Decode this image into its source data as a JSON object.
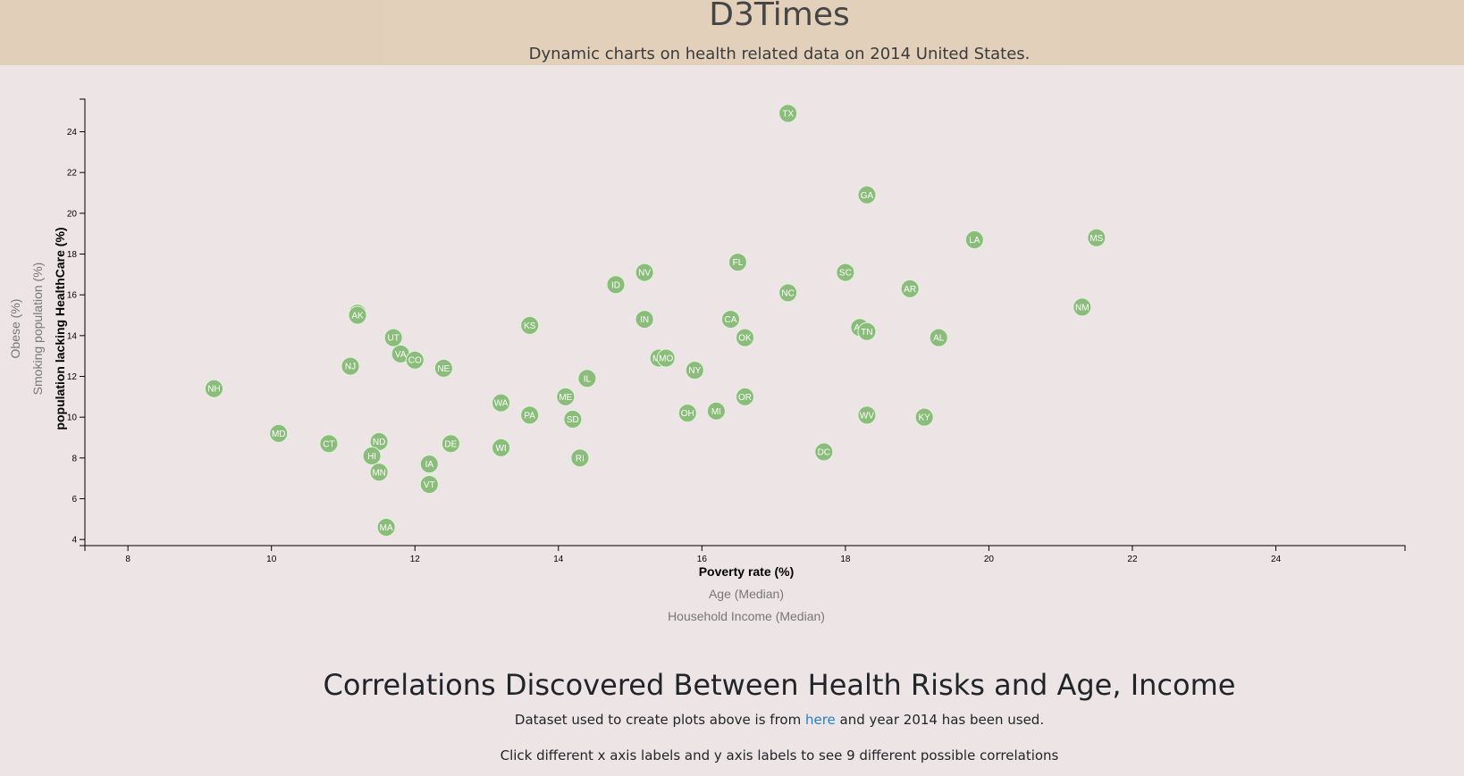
{
  "header": {
    "title": "D3Times",
    "subtitle": "Dynamic charts on health related data on 2014 United States."
  },
  "colors": {
    "circle": "#89bd79",
    "header_bg": "#e2cfb9",
    "page_bg": "#ede5e5",
    "link": "#1f7fd2"
  },
  "chart_data": {
    "type": "scatter",
    "xlabel": "Poverty rate (%)",
    "ylabel": "population lacking HealthCare (%)",
    "x_axis_options": [
      "Poverty rate (%)",
      "Age (Median)",
      "Household Income (Median)"
    ],
    "y_axis_options": [
      "population lacking HealthCare (%)",
      "Smoking population (%)",
      "Obese (%)"
    ],
    "active_x": 0,
    "active_y": 0,
    "xlim": [
      7.4,
      25.8
    ],
    "ylim": [
      3.7,
      25.6
    ],
    "x_ticks": [
      8,
      10,
      12,
      14,
      16,
      18,
      20,
      22,
      24
    ],
    "y_ticks": [
      4,
      6,
      8,
      10,
      12,
      14,
      16,
      18,
      20,
      22,
      24
    ],
    "points": [
      {
        "state": "TX",
        "x": 17.2,
        "y": 24.9
      },
      {
        "state": "GA",
        "x": 18.3,
        "y": 20.9
      },
      {
        "state": "LA",
        "x": 19.8,
        "y": 18.7
      },
      {
        "state": "MS",
        "x": 21.5,
        "y": 18.8
      },
      {
        "state": "FL",
        "x": 16.5,
        "y": 17.6
      },
      {
        "state": "NV",
        "x": 15.2,
        "y": 17.1
      },
      {
        "state": "SC",
        "x": 18.0,
        "y": 17.1
      },
      {
        "state": "ID",
        "x": 14.8,
        "y": 16.5
      },
      {
        "state": "AR",
        "x": 18.9,
        "y": 16.3
      },
      {
        "state": "NC",
        "x": 17.2,
        "y": 16.1
      },
      {
        "state": "NM",
        "x": 21.3,
        "y": 15.4
      },
      {
        "state": "WY",
        "x": 11.2,
        "y": 15.1
      },
      {
        "state": "AK",
        "x": 11.2,
        "y": 15.0
      },
      {
        "state": "IN",
        "x": 15.2,
        "y": 14.8
      },
      {
        "state": "CA",
        "x": 16.4,
        "y": 14.8
      },
      {
        "state": "KS",
        "x": 13.6,
        "y": 14.5
      },
      {
        "state": "AZ",
        "x": 18.2,
        "y": 14.4
      },
      {
        "state": "TN",
        "x": 18.3,
        "y": 14.2
      },
      {
        "state": "UT",
        "x": 11.7,
        "y": 13.9
      },
      {
        "state": "OK",
        "x": 16.6,
        "y": 13.9
      },
      {
        "state": "AL",
        "x": 19.3,
        "y": 13.9
      },
      {
        "state": "VA",
        "x": 11.8,
        "y": 13.1
      },
      {
        "state": "MT",
        "x": 15.4,
        "y": 12.9
      },
      {
        "state": "MO",
        "x": 15.5,
        "y": 12.9
      },
      {
        "state": "CO",
        "x": 12.0,
        "y": 12.8
      },
      {
        "state": "NJ",
        "x": 11.1,
        "y": 12.5
      },
      {
        "state": "NE",
        "x": 12.4,
        "y": 12.4
      },
      {
        "state": "NY",
        "x": 15.9,
        "y": 12.3
      },
      {
        "state": "IL",
        "x": 14.4,
        "y": 11.9
      },
      {
        "state": "NH",
        "x": 9.2,
        "y": 11.4
      },
      {
        "state": "ME",
        "x": 14.1,
        "y": 11.0
      },
      {
        "state": "OR",
        "x": 16.6,
        "y": 11.0
      },
      {
        "state": "WA",
        "x": 13.2,
        "y": 10.7
      },
      {
        "state": "MI",
        "x": 16.2,
        "y": 10.3
      },
      {
        "state": "OH",
        "x": 15.8,
        "y": 10.2
      },
      {
        "state": "PA",
        "x": 13.6,
        "y": 10.1
      },
      {
        "state": "WV",
        "x": 18.3,
        "y": 10.1
      },
      {
        "state": "KY",
        "x": 19.1,
        "y": 10.0
      },
      {
        "state": "SD",
        "x": 14.2,
        "y": 9.9
      },
      {
        "state": "MD",
        "x": 10.1,
        "y": 9.2
      },
      {
        "state": "CT",
        "x": 10.8,
        "y": 8.7
      },
      {
        "state": "ND",
        "x": 11.5,
        "y": 8.8
      },
      {
        "state": "DE",
        "x": 12.5,
        "y": 8.7
      },
      {
        "state": "WI",
        "x": 13.2,
        "y": 8.5
      },
      {
        "state": "DC",
        "x": 17.7,
        "y": 8.3
      },
      {
        "state": "HI",
        "x": 11.4,
        "y": 8.1
      },
      {
        "state": "RI",
        "x": 14.3,
        "y": 8.0
      },
      {
        "state": "IA",
        "x": 12.2,
        "y": 7.7
      },
      {
        "state": "MN",
        "x": 11.5,
        "y": 7.3
      },
      {
        "state": "VT",
        "x": 12.2,
        "y": 6.7
      },
      {
        "state": "MA",
        "x": 11.6,
        "y": 4.6
      }
    ]
  },
  "content": {
    "section_title": "Correlations Discovered Between Health Risks and Age, Income",
    "dataset_prefix": "Dataset used to create plots above is from ",
    "dataset_link": "here",
    "dataset_suffix": " and year 2014 has been used.",
    "instruction": "Click different x axis labels and y axis labels to see 9 different possible correlations"
  }
}
